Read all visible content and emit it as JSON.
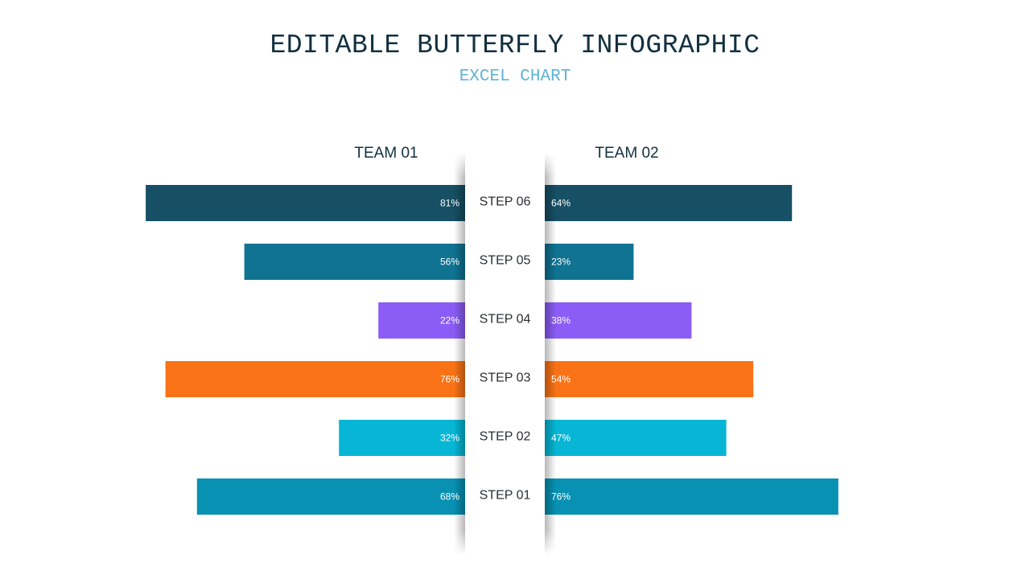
{
  "title": "EDITABLE BUTTERFLY INFOGRAPHIC",
  "subtitle": "EXCEL CHART",
  "chart_data": {
    "type": "bar",
    "orientation": "horizontal-butterfly",
    "title": "EDITABLE BUTTERFLY INFOGRAPHIC",
    "subtitle": "EXCEL CHART",
    "categories": [
      "STEP 06",
      "STEP 05",
      "STEP 04",
      "STEP 03",
      "STEP 02",
      "STEP 01"
    ],
    "series": [
      {
        "name": "TEAM 01",
        "side": "left",
        "values": [
          81,
          56,
          22,
          76,
          32,
          68
        ],
        "labels": [
          "81%",
          "56%",
          "22%",
          "76%",
          "32%",
          "68%"
        ]
      },
      {
        "name": "TEAM 02",
        "side": "right",
        "values": [
          64,
          23,
          38,
          54,
          47,
          76
        ],
        "labels": [
          "64%",
          "23%",
          "38%",
          "54%",
          "47%",
          "76%"
        ]
      }
    ],
    "colors": [
      "#174f64",
      "#0f7391",
      "#8b5cf6",
      "#f97316",
      "#06b6d4",
      "#0891b2"
    ],
    "label_color": "#ffffff",
    "xlim": [
      0,
      100
    ]
  }
}
